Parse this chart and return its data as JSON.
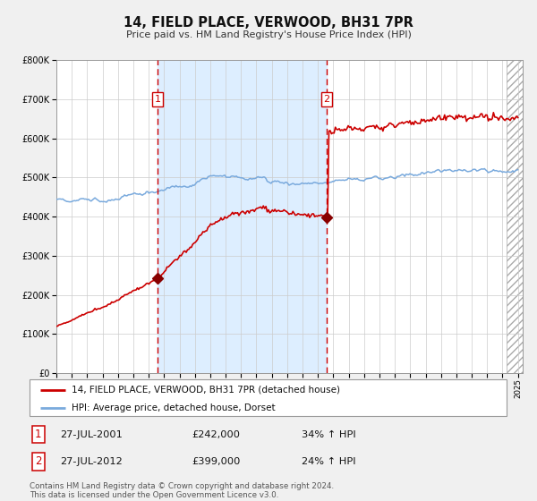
{
  "title": "14, FIELD PLACE, VERWOOD, BH31 7PR",
  "subtitle": "Price paid vs. HM Land Registry's House Price Index (HPI)",
  "legend_line1": "14, FIELD PLACE, VERWOOD, BH31 7PR (detached house)",
  "legend_line2": "HPI: Average price, detached house, Dorset",
  "sale1_date": "27-JUL-2001",
  "sale1_price": "£242,000",
  "sale1_hpi": "34% ↑ HPI",
  "sale1_year": 2001.57,
  "sale1_value": 242000,
  "sale2_date": "27-JUL-2012",
  "sale2_price": "£399,000",
  "sale2_hpi": "24% ↑ HPI",
  "sale2_year": 2012.57,
  "sale2_value": 399000,
  "footer": "Contains HM Land Registry data © Crown copyright and database right 2024.\nThis data is licensed under the Open Government Licence v3.0.",
  "red_color": "#cc0000",
  "blue_color": "#7aaadd",
  "shade_color": "#ddeeff",
  "grid_color": "#cccccc",
  "bg_color": "#f0f0f0",
  "chart_bg": "#ffffff",
  "xmin": 1995.0,
  "xmax": 2025.3,
  "ymin": 0,
  "ymax": 800000
}
